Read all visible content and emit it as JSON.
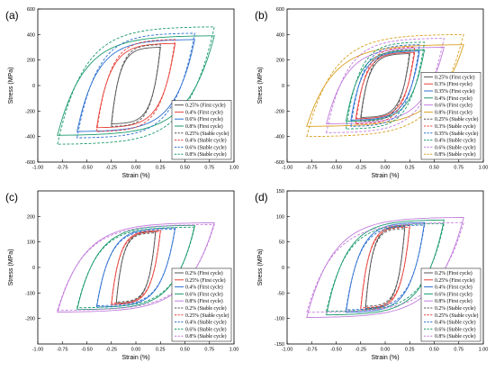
{
  "chart_data": [
    {
      "type": "line",
      "panel": "(a)",
      "xlabel": "Strain (%)",
      "ylabel": "Stress (MPa)",
      "xlim": [
        -1.0,
        1.0
      ],
      "ylim": [
        -600,
        600
      ],
      "xticks": [
        "-1.00",
        "-0.75",
        "-0.50",
        "-0.25",
        "0.00",
        "0.25",
        "0.50",
        "0.75",
        "1.00"
      ],
      "yticks": [
        "600",
        "400",
        "200",
        "0",
        "-200",
        "-400",
        "-600"
      ],
      "xtick_values": [
        -1.0,
        -0.75,
        -0.5,
        -0.25,
        0.0,
        0.25,
        0.5,
        0.75,
        1.0
      ],
      "ytick_values": [
        600,
        400,
        200,
        0,
        -200,
        -400,
        -600
      ],
      "legend_position": "lower-right",
      "series": [
        {
          "name": "0.25% (First cycle)",
          "amplitude": 0.25,
          "peak": 300,
          "color": "#555555",
          "dash": false
        },
        {
          "name": "0.4% (First cycle)",
          "amplitude": 0.4,
          "peak": 330,
          "color": "#e8413a",
          "dash": false
        },
        {
          "name": "0.6% (First cycle)",
          "amplitude": 0.6,
          "peak": 360,
          "color": "#2c6fd1",
          "dash": false
        },
        {
          "name": "0.8% (First cycle)",
          "amplitude": 0.8,
          "peak": 390,
          "color": "#1a9a6c",
          "dash": false
        },
        {
          "name": "0.25% (Stable cycle)",
          "amplitude": 0.25,
          "peak": 320,
          "color": "#555555",
          "dash": true
        },
        {
          "name": "0.4% (Stable cycle)",
          "amplitude": 0.4,
          "peak": 360,
          "color": "#e8413a",
          "dash": true
        },
        {
          "name": "0.6% (Stable cycle)",
          "amplitude": 0.6,
          "peak": 410,
          "color": "#2c6fd1",
          "dash": true
        },
        {
          "name": "0.8% (Stable cycle)",
          "amplitude": 0.8,
          "peak": 460,
          "color": "#1a9a6c",
          "dash": true
        }
      ]
    },
    {
      "type": "line",
      "panel": "(b)",
      "xlabel": "Strain (%)",
      "ylabel": "Stress (MPa)",
      "xlim": [
        -1.0,
        1.0
      ],
      "ylim": [
        -600,
        600
      ],
      "xticks": [
        "-1.00",
        "-0.75",
        "-0.50",
        "-0.25",
        "0.00",
        "0.25",
        "0.50",
        "0.75",
        "1.00"
      ],
      "yticks": [
        "600",
        "400",
        "200",
        "0",
        "-200",
        "-400",
        "-600"
      ],
      "xtick_values": [
        -1.0,
        -0.75,
        -0.5,
        -0.25,
        0.0,
        0.25,
        0.5,
        0.75,
        1.0
      ],
      "ytick_values": [
        600,
        400,
        200,
        0,
        -200,
        -400,
        -600
      ],
      "legend_position": "lower-right",
      "series": [
        {
          "name": "0.25% (First cycle)",
          "amplitude": 0.25,
          "peak": 250,
          "color": "#555555",
          "dash": false
        },
        {
          "name": "0.3% (First cycle)",
          "amplitude": 0.3,
          "peak": 260,
          "color": "#e8413a",
          "dash": false
        },
        {
          "name": "0.35% (First cycle)",
          "amplitude": 0.35,
          "peak": 270,
          "color": "#2c6fd1",
          "dash": false
        },
        {
          "name": "0.4% (First cycle)",
          "amplitude": 0.4,
          "peak": 280,
          "color": "#1a9a6c",
          "dash": false
        },
        {
          "name": "0.6% (First cycle)",
          "amplitude": 0.6,
          "peak": 300,
          "color": "#c27ddc",
          "dash": false
        },
        {
          "name": "0.8% (First cycle)",
          "amplitude": 0.8,
          "peak": 320,
          "color": "#d9a020",
          "dash": false
        },
        {
          "name": "0.25% (Stable cycle)",
          "amplitude": 0.25,
          "peak": 280,
          "color": "#555555",
          "dash": true
        },
        {
          "name": "0.3% (Stable cycle)",
          "amplitude": 0.3,
          "peak": 300,
          "color": "#e8413a",
          "dash": true
        },
        {
          "name": "0.35% (Stable cycle)",
          "amplitude": 0.35,
          "peak": 320,
          "color": "#2c6fd1",
          "dash": true
        },
        {
          "name": "0.4%  (Stable  cycle)",
          "amplitude": 0.4,
          "peak": 340,
          "color": "#1a9a6c",
          "dash": true
        },
        {
          "name": "0.6% (Stable cycle)",
          "amplitude": 0.6,
          "peak": 370,
          "color": "#c27ddc",
          "dash": true
        },
        {
          "name": "0.8% (Stable cycle)",
          "amplitude": 0.8,
          "peak": 400,
          "color": "#d9a020",
          "dash": true
        }
      ]
    },
    {
      "type": "line",
      "panel": "(c)",
      "xlabel": "Strain (%)",
      "ylabel": "Stress (MPa)",
      "xlim": [
        -1.0,
        1.0
      ],
      "ylim": [
        -300,
        300
      ],
      "xticks": [
        "-1.00",
        "-0.75",
        "-0.50",
        "-0.25",
        "0.00",
        "0.25",
        "0.50",
        "0.75",
        "1.00"
      ],
      "yticks": [
        "200",
        "100",
        "0",
        "-100",
        "-200"
      ],
      "xtick_values": [
        -1.0,
        -0.75,
        -0.5,
        -0.25,
        0.0,
        0.25,
        0.5,
        0.75,
        1.0
      ],
      "ytick_values": [
        200,
        100,
        0,
        -100,
        -200
      ],
      "legend_position": "lower-right",
      "series": [
        {
          "name": "0.2% (First cycle)",
          "amplitude": 0.2,
          "peak": 140,
          "color": "#555555",
          "dash": false
        },
        {
          "name": "0.25% (First cycle)",
          "amplitude": 0.25,
          "peak": 145,
          "color": "#e8413a",
          "dash": false
        },
        {
          "name": "0.4% (First cycle)",
          "amplitude": 0.4,
          "peak": 155,
          "color": "#2c6fd1",
          "dash": false
        },
        {
          "name": "0.6% (First cycle)",
          "amplitude": 0.6,
          "peak": 165,
          "color": "#1a9a6c",
          "dash": false
        },
        {
          "name": "0.8% (First cycle)",
          "amplitude": 0.8,
          "peak": 175,
          "color": "#c27ddc",
          "dash": false
        },
        {
          "name": "0.2% (Stable cycle)",
          "amplitude": 0.2,
          "peak": 135,
          "color": "#555555",
          "dash": true
        },
        {
          "name": "0.25% (Stable cycle)",
          "amplitude": 0.25,
          "peak": 140,
          "color": "#e8413a",
          "dash": true
        },
        {
          "name": "0.4% (Stable cycle)",
          "amplitude": 0.4,
          "peak": 150,
          "color": "#2c6fd1",
          "dash": true
        },
        {
          "name": "0.6% (Stable cycle)",
          "amplitude": 0.6,
          "peak": 158,
          "color": "#1a9a6c",
          "dash": true
        },
        {
          "name": "0.8% (Stable cycle)",
          "amplitude": 0.8,
          "peak": 168,
          "color": "#c27ddc",
          "dash": true
        }
      ]
    },
    {
      "type": "line",
      "panel": "(d)",
      "xlabel": "Strain (%)",
      "ylabel": "Stress (MPa)",
      "xlim": [
        -1.0,
        1.0
      ],
      "ylim": [
        -150,
        150
      ],
      "xticks": [
        "-1.00",
        "-0.75",
        "-0.50",
        "-0.25",
        "0.00",
        "0.25",
        "0.50",
        "0.75",
        "1.00"
      ],
      "yticks": [
        "150",
        "100",
        "50",
        "0",
        "-50",
        "-100",
        "-150"
      ],
      "xtick_values": [
        -1.0,
        -0.75,
        -0.5,
        -0.25,
        0.0,
        0.25,
        0.5,
        0.75,
        1.0
      ],
      "ytick_values": [
        150,
        100,
        50,
        0,
        -50,
        -100,
        -150
      ],
      "legend_position": "lower-right",
      "series": [
        {
          "name": "0.2% (First cycle)",
          "amplitude": 0.2,
          "peak": 80,
          "color": "#555555",
          "dash": false
        },
        {
          "name": "0.25% (First cycle)",
          "amplitude": 0.25,
          "peak": 83,
          "color": "#e8413a",
          "dash": false
        },
        {
          "name": "0.4% (First cycle)",
          "amplitude": 0.4,
          "peak": 88,
          "color": "#2c6fd1",
          "dash": false
        },
        {
          "name": "0.6% (First cycle)",
          "amplitude": 0.6,
          "peak": 93,
          "color": "#1a9a6c",
          "dash": false
        },
        {
          "name": "0.8% (First cycle)",
          "amplitude": 0.8,
          "peak": 98,
          "color": "#c27ddc",
          "dash": false
        },
        {
          "name": "0.2% (Stable cycle)",
          "amplitude": 0.2,
          "peak": 76,
          "color": "#555555",
          "dash": true
        },
        {
          "name": "0.25% (Stable cycle)",
          "amplitude": 0.25,
          "peak": 79,
          "color": "#e8413a",
          "dash": true
        },
        {
          "name": "0.4% (Stable cycle)",
          "amplitude": 0.4,
          "peak": 83,
          "color": "#2c6fd1",
          "dash": true
        },
        {
          "name": "0.6% (Stable cycle)",
          "amplitude": 0.6,
          "peak": 86,
          "color": "#1a9a6c",
          "dash": true
        },
        {
          "name": "0.8% (Stable cycle)",
          "amplitude": 0.8,
          "peak": 88,
          "color": "#c27ddc",
          "dash": true
        }
      ]
    }
  ]
}
